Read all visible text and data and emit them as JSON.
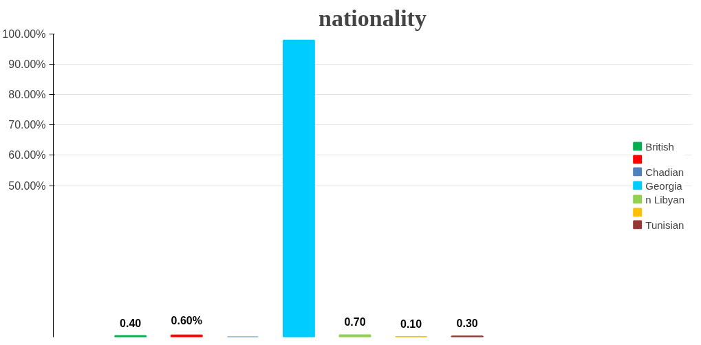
{
  "chart_data": {
    "type": "bar",
    "title": "nationality",
    "categories": [
      null
    ],
    "series": [
      {
        "name": "British",
        "color": "#00b050",
        "values": [
          0.4
        ],
        "value_labels": [
          "0.40"
        ]
      },
      {
        "color": "#ff0000",
        "values": [
          0.6
        ],
        "value_labels": [
          "0.60%"
        ]
      },
      {
        "name": "Chadian",
        "color": "#4f81bd",
        "values": [
          0
        ],
        "value_labels": [
          null
        ]
      },
      {
        "name": "Georgia",
        "color": "#00ccff",
        "values": [
          97.9
        ],
        "value_labels": [
          null
        ]
      },
      {
        "name": "n Libyan",
        "color": "#92d050",
        "values": [
          0.7
        ],
        "value_labels": [
          "0.70"
        ]
      },
      {
        "color": "#ffc000",
        "values": [
          0.1
        ],
        "value_labels": [
          "0.10"
        ]
      },
      {
        "name": "Tunisian",
        "color": "#953735",
        "values": [
          0.3
        ],
        "value_labels": [
          "0.30"
        ]
      }
    ],
    "ylim": [
      0,
      100
    ],
    "yticks": [
      {
        "value": 50,
        "label": "50.00%"
      },
      {
        "value": 60,
        "label": "60.00%"
      },
      {
        "value": 70,
        "label": "70.00%"
      },
      {
        "value": 80,
        "label": "80.00%"
      },
      {
        "value": 90,
        "label": "90.00%"
      },
      {
        "value": 100,
        "label": "100.00%"
      }
    ],
    "grid": "y",
    "legend": "right"
  }
}
